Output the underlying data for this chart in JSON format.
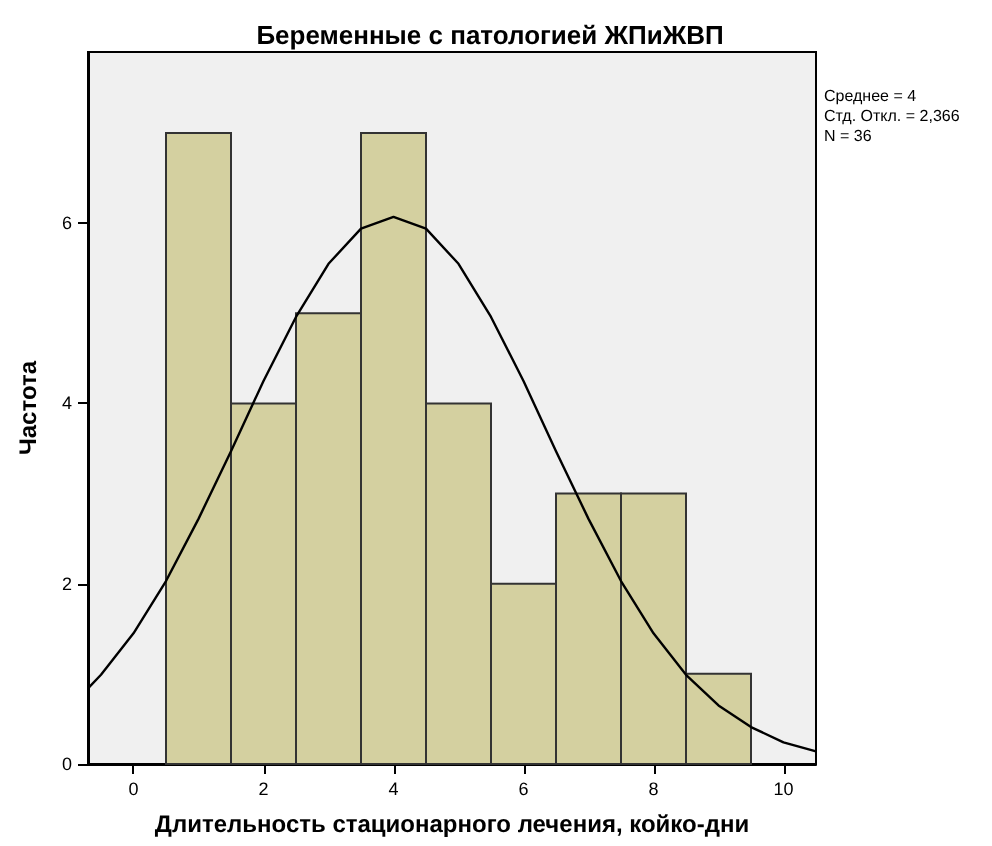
{
  "chart_data": {
    "type": "histogram",
    "title": "Беременные с патологией ЖПиЖВП",
    "xlabel": "Длительность стационарного лечения, койко-дни",
    "ylabel": "Частота",
    "bins": [
      0.5,
      1.5,
      2.5,
      3.5,
      4.5,
      5.5,
      6.5,
      7.5,
      8.5,
      9.5
    ],
    "series": [
      {
        "color": "#d4d0a0",
        "values": [
          7,
          4,
          5,
          7,
          4,
          2,
          3,
          3,
          1
        ]
      },
      {
        "type": "line",
        "color": "#000000",
        "marker": "none",
        "x": [
          -0.7,
          -0.5,
          0,
          0.5,
          1,
          1.5,
          2,
          2.5,
          3,
          3.5,
          4,
          4.5,
          5,
          5.5,
          6,
          6.5,
          7,
          7.5,
          8,
          8.5,
          9,
          9.5,
          10,
          10.5
        ],
        "values": [
          0.84,
          0.99,
          1.45,
          2.03,
          2.72,
          3.47,
          4.25,
          4.96,
          5.55,
          5.94,
          6.07,
          5.94,
          5.55,
          4.96,
          4.25,
          3.47,
          2.72,
          2.03,
          1.45,
          0.99,
          0.65,
          0.41,
          0.24,
          0.14
        ]
      }
    ],
    "annotations": [
      "Среднее = 4",
      "Стд. Откл. = 2,366",
      "N = 36"
    ],
    "xlim": [
      -0.7,
      10.5
    ],
    "ylim": [
      0,
      7.9
    ],
    "xticks": [
      0,
      2,
      4,
      6,
      8,
      10
    ],
    "yticks": [
      0,
      2,
      4,
      6
    ],
    "grid": false
  }
}
